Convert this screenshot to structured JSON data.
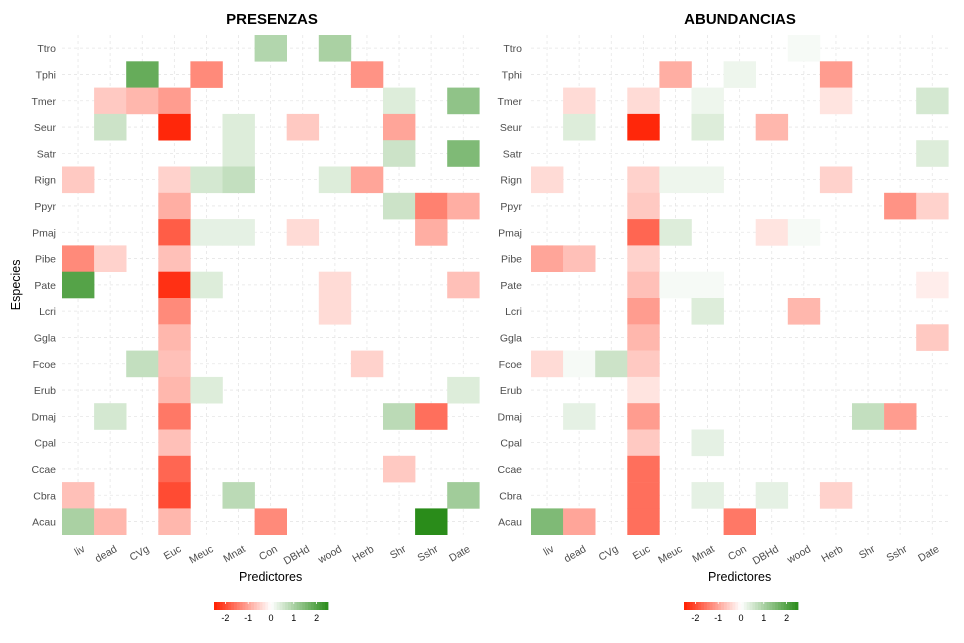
{
  "chart_data": [
    {
      "type": "heatmap",
      "title": "PRESENZAS",
      "xlabel": "Predictores",
      "ylabel": "Especies",
      "x": [
        "liv",
        "dead",
        "CVg",
        "Euc",
        "Meuc",
        "Mnat",
        "Con",
        "DBHd",
        "wood",
        "Herb",
        "Shr",
        "Sshr",
        "Date"
      ],
      "y": [
        "Ttro",
        "Tphi",
        "Tmer",
        "Seur",
        "Satr",
        "Rign",
        "Ppyr",
        "Pmaj",
        "Pibe",
        "Pate",
        "Lcri",
        "Ggla",
        "Fcoe",
        "Erub",
        "Dmaj",
        "Cpal",
        "Ccae",
        "Cbra",
        "Acau"
      ],
      "color_range": [
        -2.5,
        2.5
      ],
      "legend_ticks": [
        "-2",
        "-1",
        "0",
        "1",
        "2"
      ],
      "values": [
        [
          0,
          0,
          0,
          0,
          0,
          0,
          0.9,
          0,
          1.0,
          0,
          0,
          0,
          0
        ],
        [
          0,
          0,
          1.8,
          0,
          -1.3,
          0,
          0,
          0,
          0,
          -1.2,
          0,
          0,
          0
        ],
        [
          0,
          -0.6,
          -0.8,
          -1.1,
          0,
          0,
          0,
          0,
          0,
          0,
          0.4,
          0,
          1.3
        ],
        [
          0,
          0.6,
          0,
          -2.4,
          0,
          0.4,
          0,
          -0.6,
          0,
          0,
          -1.0,
          0,
          0
        ],
        [
          0,
          0,
          0,
          0,
          0,
          0.4,
          0,
          0,
          0,
          0,
          0.6,
          0,
          1.5
        ],
        [
          -0.6,
          0,
          0,
          -0.5,
          0.5,
          0.7,
          0,
          0,
          0.4,
          -1.0,
          0,
          0,
          0
        ],
        [
          0,
          0,
          0,
          -0.9,
          0,
          0,
          0,
          0,
          0,
          0,
          0.6,
          -1.4,
          -0.9
        ],
        [
          0,
          0,
          0,
          -1.8,
          0.3,
          0.3,
          0,
          -0.4,
          0,
          0,
          0,
          -0.9,
          0
        ],
        [
          -1.3,
          -0.5,
          0,
          -0.7,
          0,
          0,
          0,
          0,
          0,
          0,
          0,
          0,
          0
        ],
        [
          2.0,
          0,
          0,
          -2.3,
          0.4,
          0,
          0,
          0,
          -0.4,
          0,
          0,
          0,
          -0.7
        ],
        [
          0,
          0,
          0,
          -1.3,
          0,
          0,
          0,
          0,
          -0.4,
          0,
          0,
          0,
          0
        ],
        [
          0,
          0,
          0,
          -0.8,
          0,
          0,
          0,
          0,
          0,
          0,
          0,
          0,
          0
        ],
        [
          0,
          0,
          0.7,
          -0.7,
          0,
          0,
          0,
          0,
          0,
          -0.5,
          0,
          0,
          0
        ],
        [
          0,
          0,
          0,
          -0.8,
          0.4,
          0,
          0,
          0,
          0,
          0,
          0,
          0,
          0.4
        ],
        [
          0,
          0.5,
          0,
          -1.5,
          0,
          0,
          0,
          0,
          0,
          0,
          0.8,
          -1.6,
          0
        ],
        [
          0,
          0,
          0,
          -0.7,
          0,
          0,
          0,
          0,
          0,
          0,
          0,
          0,
          0
        ],
        [
          0,
          0,
          0,
          -1.7,
          0,
          0,
          0,
          0,
          0,
          0,
          -0.6,
          0,
          0
        ],
        [
          -0.7,
          0,
          0,
          -2.0,
          0,
          0.8,
          0,
          0,
          0,
          0,
          0,
          0,
          1.1
        ],
        [
          1.0,
          -0.8,
          0,
          -0.8,
          0,
          0,
          -1.3,
          0,
          0,
          0,
          0,
          2.5,
          0
        ]
      ]
    },
    {
      "type": "heatmap",
      "title": "ABUNDANCIAS",
      "xlabel": "Predictores",
      "ylabel": "",
      "x": [
        "liv",
        "dead",
        "CVg",
        "Euc",
        "Meuc",
        "Mnat",
        "Con",
        "DBHd",
        "wood",
        "Herb",
        "Shr",
        "Sshr",
        "Date"
      ],
      "y": [
        "Ttro",
        "Tphi",
        "Tmer",
        "Seur",
        "Satr",
        "Rign",
        "Ppyr",
        "Pmaj",
        "Pibe",
        "Pate",
        "Lcri",
        "Ggla",
        "Fcoe",
        "Erub",
        "Dmaj",
        "Cpal",
        "Ccae",
        "Cbra",
        "Acau"
      ],
      "color_range": [
        -2.5,
        2.5
      ],
      "legend_ticks": [
        "-2",
        "-1",
        "0",
        "1",
        "2"
      ],
      "values": [
        [
          0,
          0,
          0,
          0,
          0,
          0,
          0,
          0,
          0.1,
          0,
          0,
          0,
          0
        ],
        [
          0,
          0,
          0,
          0,
          -0.9,
          0,
          0.2,
          0,
          0,
          -1.1,
          0,
          0,
          0
        ],
        [
          0,
          -0.4,
          0,
          -0.4,
          0,
          0.2,
          0,
          0,
          0,
          -0.3,
          0,
          0,
          0.5
        ],
        [
          0,
          0.4,
          0,
          -2.4,
          0,
          0.4,
          0,
          -0.8,
          0,
          0,
          0,
          0,
          0
        ],
        [
          0,
          0,
          0,
          0,
          0,
          0,
          0,
          0,
          0,
          0,
          0,
          0,
          0.4
        ],
        [
          -0.4,
          0,
          0,
          -0.5,
          0.2,
          0.2,
          0,
          0,
          0,
          -0.5,
          0,
          0,
          0
        ],
        [
          0,
          0,
          0,
          -0.6,
          0,
          0,
          0,
          0,
          0,
          0,
          0,
          -1.2,
          -0.5
        ],
        [
          0,
          0,
          0,
          -1.7,
          0.4,
          0,
          0,
          -0.3,
          0.1,
          0,
          0,
          0,
          0
        ],
        [
          -1.0,
          -0.7,
          0,
          -0.5,
          0,
          0,
          0,
          0,
          0,
          0,
          0,
          0,
          0
        ],
        [
          0,
          0,
          0,
          -0.7,
          0.1,
          0.1,
          0,
          0,
          0,
          0,
          0,
          0,
          -0.2
        ],
        [
          0,
          0,
          0,
          -1.1,
          0,
          0.4,
          0,
          0,
          -0.8,
          0,
          0,
          0,
          0
        ],
        [
          0,
          0,
          0,
          -0.8,
          0,
          0,
          0,
          0,
          0,
          0,
          0,
          0,
          -0.6
        ],
        [
          -0.4,
          0.1,
          0.6,
          -0.6,
          0,
          0,
          0,
          0,
          0,
          0,
          0,
          0,
          0
        ],
        [
          0,
          0,
          0,
          -0.3,
          0,
          0,
          0,
          0,
          0,
          0,
          0,
          0,
          0
        ],
        [
          0,
          0.3,
          0,
          -1.1,
          0,
          0,
          0,
          0,
          0,
          0,
          0.7,
          -1.1,
          0
        ],
        [
          0,
          0,
          0,
          -0.6,
          0,
          0.3,
          0,
          0,
          0,
          0,
          0,
          0,
          0
        ],
        [
          0,
          0,
          0,
          -1.6,
          0,
          0,
          0,
          0,
          0,
          0,
          0,
          0,
          0
        ],
        [
          0,
          0,
          0,
          -1.6,
          0,
          0.3,
          0,
          0.3,
          0,
          -0.5,
          0,
          0,
          0
        ],
        [
          1.5,
          -1.0,
          0,
          -1.6,
          0,
          0,
          -1.5,
          0,
          0,
          0,
          0,
          0,
          0
        ]
      ]
    }
  ]
}
